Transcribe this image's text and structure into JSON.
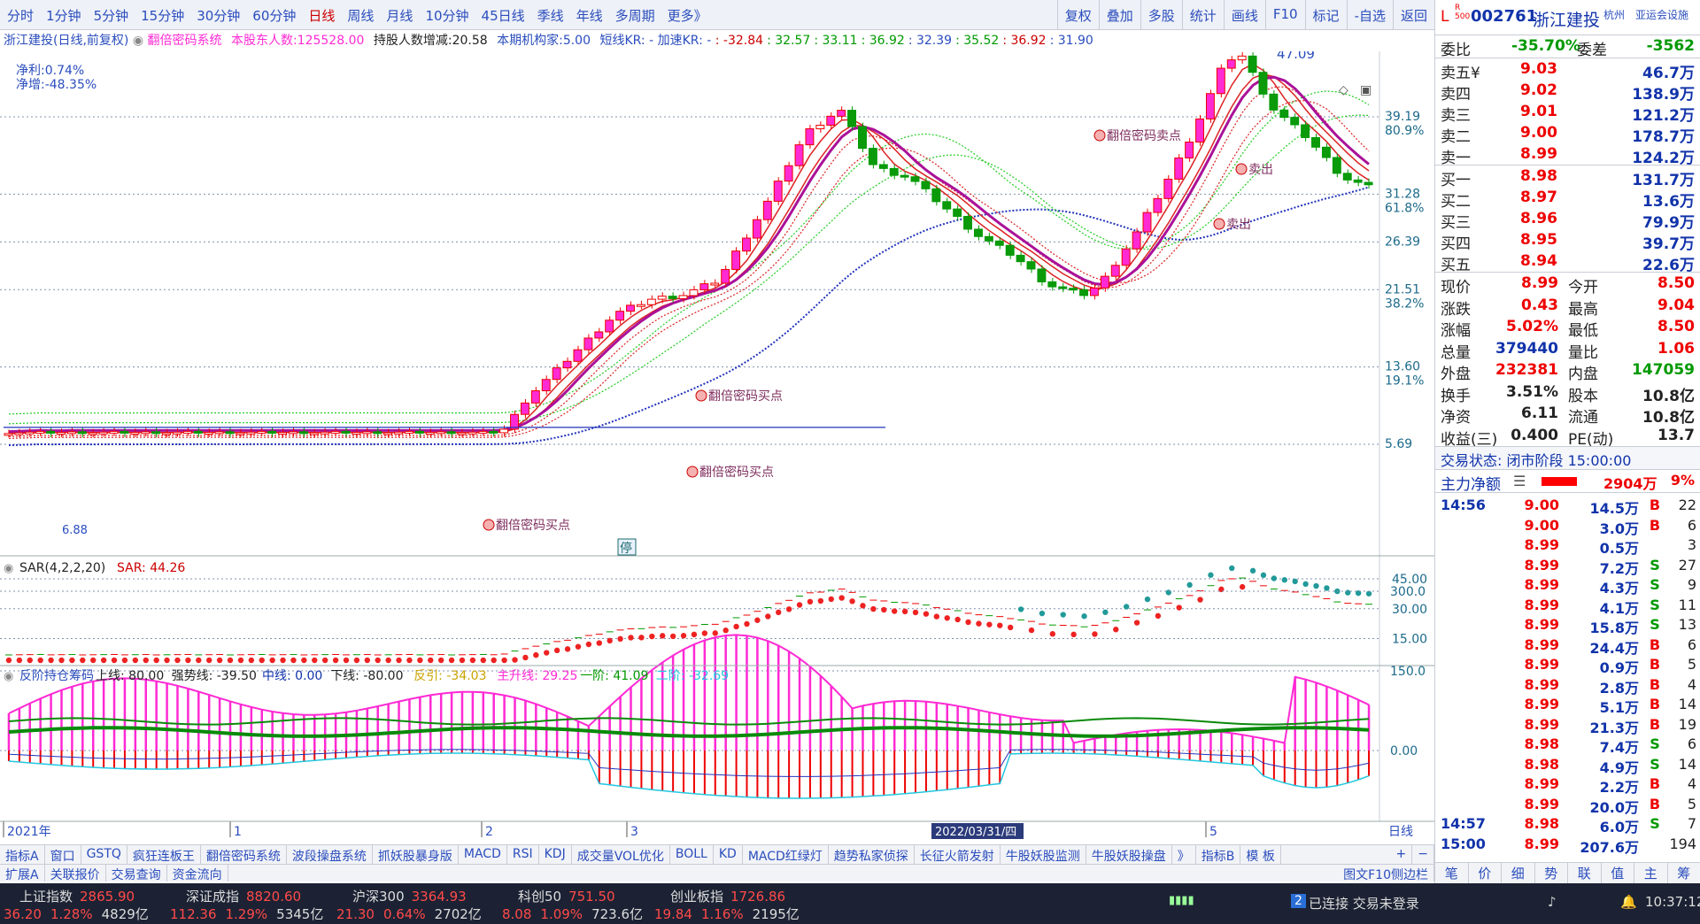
{
  "toolbar": {
    "periods": [
      "分时",
      "1分钟",
      "5分钟",
      "15分钟",
      "30分钟",
      "60分钟",
      "日线",
      "周线",
      "月线",
      "10分钟",
      "45日线",
      "季线",
      "年线",
      "多周期",
      "更多》"
    ],
    "active": "日线",
    "tools": [
      "复权",
      "叠加",
      "多股",
      "统计",
      "画线",
      "F10",
      "标记",
      "-自选",
      "返回"
    ]
  },
  "info": {
    "name": "浙江建投(日线,前复权)",
    "system": "翻倍密码系统",
    "holders_label": "本股东人数:",
    "holders": "125528.00",
    "change_label": "持股人数增减:",
    "change": "20.58",
    "inst_label": "本期机构家:",
    "inst": "5.00",
    "kr_label": "短线KR: -  加速KR: -",
    "kr_values": [
      ": -32.84",
      ": 32.57",
      ": 33.11",
      ": 36.92",
      ": 32.39",
      ": 35.52",
      ": 36.92",
      ": 31.90"
    ]
  },
  "main_chart": {
    "profit_label": "净利:0.74%",
    "growth_label": "净增:-48.35%",
    "y_labels": [
      {
        "v": "39.19",
        "p": "80.9%"
      },
      {
        "v": "31.28",
        "p": "61.8%"
      },
      {
        "v": "26.39",
        "p": ""
      },
      {
        "v": "21.51",
        "p": "38.2%"
      },
      {
        "v": "13.60",
        "p": "19.1%"
      },
      {
        "v": "5.69",
        "p": ""
      }
    ],
    "high_label": "47.09",
    "low_label": "6.88",
    "annotations": [
      "翻倍密码买点",
      "翻倍密码买点",
      "翻倍密码买点",
      "卖出",
      "卖出",
      "翻倍密码卖点"
    ],
    "stop_label": "停"
  },
  "sar": {
    "title": "SAR(4,2,2,20)",
    "value": "SAR: 44.26",
    "y_labels": [
      "45.00",
      "30.00",
      "15.00"
    ]
  },
  "fan": {
    "title": "反阶持仓筹码",
    "items": [
      {
        "t": "上线: 80.00",
        "c": "#222"
      },
      {
        "t": "强势线: -39.50",
        "c": "#222"
      },
      {
        "t": "中线: 0.00",
        "c": "#1133aa"
      },
      {
        "t": "下线: -80.00",
        "c": "#222"
      },
      {
        "t": "反引: -34.03",
        "c": "#c9a300"
      },
      {
        "t": "主升线: 29.25",
        "c": "#ff2ad4"
      },
      {
        "t": "一阶: 41.09",
        "c": "#090"
      },
      {
        "t": "二阶: -32.69",
        "c": "#22c7e0"
      }
    ],
    "y_labels": [
      "300.0",
      "150.0",
      "0.00"
    ]
  },
  "x_axis": {
    "labels": [
      "2021年",
      "1",
      "2",
      "3",
      "5"
    ],
    "cursor_date": "2022/03/31/四",
    "right_label": "日线"
  },
  "bottom_tabs": [
    "指标A",
    "窗口",
    "GSTQ",
    "疯狂连板王",
    "翻倍密码系统",
    "波段操盘系统",
    "抓妖股暴身版",
    "MACD",
    "RSI",
    "KDJ",
    "成交量VOL优化",
    "BOLL",
    "KD",
    "MACD红绿灯",
    "趋势私家侦探",
    "长征火箭发射",
    "牛股妖股监测",
    "牛股妖股操盘",
    "》",
    "指标B",
    "模 板"
  ],
  "bottom_tabs2": [
    "扩展A",
    "关联报价",
    "交易查询",
    "资金流向"
  ],
  "bottom_tabs2_right": "图文F10侧边栏",
  "status": {
    "indices": [
      {
        "name": "上证指数",
        "value": "2865.90",
        "chg": "36.20",
        "pct": "1.28%",
        "amt": "4829亿"
      },
      {
        "name": "深证成指",
        "value": "8820.60",
        "chg": "112.36",
        "pct": "1.29%",
        "amt": "5345亿"
      },
      {
        "name": "沪深300",
        "value": "3364.93",
        "chg": "21.30",
        "pct": "0.64%",
        "amt": "2702亿"
      },
      {
        "name": "科创50",
        "value": "751.50",
        "chg": "8.08",
        "pct": "1.09%",
        "amt": "723.6亿"
      },
      {
        "name": "创业板指",
        "value": "1726.86",
        "chg": "19.84",
        "pct": "1.16%",
        "amt": "2195亿"
      }
    ],
    "connection": "已连接 交易未登录",
    "conn_num": "2",
    "time": "10:37:12"
  },
  "quote": {
    "prefix": "L",
    "code": "002761",
    "name": "浙江建投",
    "region": "杭州",
    "tag": "亚运会设施",
    "weibi_label": "委比",
    "weibi": "-35.70%",
    "weicha_label": "委差",
    "weicha": "-3562",
    "asks": [
      {
        "l": "卖五¥",
        "p": "9.03",
        "v": "46.7万"
      },
      {
        "l": "卖四",
        "p": "9.02",
        "v": "138.9万"
      },
      {
        "l": "卖三",
        "p": "9.01",
        "v": "121.2万"
      },
      {
        "l": "卖二",
        "p": "9.00",
        "v": "178.7万"
      },
      {
        "l": "卖一",
        "p": "8.99",
        "v": "124.2万"
      }
    ],
    "bids": [
      {
        "l": "买一",
        "p": "8.98",
        "v": "131.7万"
      },
      {
        "l": "买二",
        "p": "8.97",
        "v": "13.6万"
      },
      {
        "l": "买三",
        "p": "8.96",
        "v": "79.9万"
      },
      {
        "l": "买四",
        "p": "8.95",
        "v": "39.7万"
      },
      {
        "l": "买五",
        "p": "8.94",
        "v": "22.6万"
      }
    ],
    "stats": [
      {
        "l1": "现价",
        "v1": "8.99",
        "c1": "red",
        "l2": "今开",
        "v2": "8.50",
        "c2": "red"
      },
      {
        "l1": "涨跌",
        "v1": "0.43",
        "c1": "red",
        "l2": "最高",
        "v2": "9.04",
        "c2": "red"
      },
      {
        "l1": "涨幅",
        "v1": "5.02%",
        "c1": "red",
        "l2": "最低",
        "v2": "8.50",
        "c2": "red"
      },
      {
        "l1": "总量",
        "v1": "379440",
        "c1": "blue",
        "l2": "量比",
        "v2": "1.06",
        "c2": "red"
      },
      {
        "l1": "外盘",
        "v1": "232381",
        "c1": "red",
        "l2": "内盘",
        "v2": "147059",
        "c2": "green"
      },
      {
        "l1": "换手",
        "v1": "3.51%",
        "c1": "dark",
        "l2": "股本",
        "v2": "10.8亿",
        "c2": "dark"
      },
      {
        "l1": "净资",
        "v1": "6.11",
        "c1": "dark",
        "l2": "流通",
        "v2": "10.8亿",
        "c2": "dark"
      },
      {
        "l1": "收益(三)",
        "v1": "0.400",
        "c1": "dark",
        "l2": "PE(动)",
        "v2": "13.7",
        "c2": "dark"
      }
    ],
    "trade_state": "交易状态: 闭市阶段 15:00:00",
    "main_net_label": "主力净额",
    "main_net": "2904万",
    "main_net_pct": "9%",
    "ticks": [
      {
        "t": "14:56",
        "p": "9.00",
        "v": "14.5万",
        "s": "B",
        "n": "22"
      },
      {
        "t": "",
        "p": "9.00",
        "v": "3.0万",
        "s": "B",
        "n": "6"
      },
      {
        "t": "",
        "p": "8.99",
        "v": "0.5万",
        "s": "",
        "n": "3"
      },
      {
        "t": "",
        "p": "8.99",
        "v": "7.2万",
        "s": "S",
        "n": "27"
      },
      {
        "t": "",
        "p": "8.99",
        "v": "4.3万",
        "s": "S",
        "n": "9"
      },
      {
        "t": "",
        "p": "8.99",
        "v": "4.1万",
        "s": "S",
        "n": "11"
      },
      {
        "t": "",
        "p": "8.99",
        "v": "15.8万",
        "s": "S",
        "n": "13"
      },
      {
        "t": "",
        "p": "8.99",
        "v": "24.4万",
        "s": "B",
        "n": "6"
      },
      {
        "t": "",
        "p": "8.99",
        "v": "0.9万",
        "s": "B",
        "n": "5"
      },
      {
        "t": "",
        "p": "8.99",
        "v": "2.8万",
        "s": "B",
        "n": "4"
      },
      {
        "t": "",
        "p": "8.99",
        "v": "5.1万",
        "s": "B",
        "n": "14"
      },
      {
        "t": "",
        "p": "8.99",
        "v": "21.3万",
        "s": "B",
        "n": "19"
      },
      {
        "t": "",
        "p": "8.98",
        "v": "7.4万",
        "s": "S",
        "n": "6"
      },
      {
        "t": "",
        "p": "8.98",
        "v": "4.9万",
        "s": "S",
        "n": "14"
      },
      {
        "t": "",
        "p": "8.99",
        "v": "2.2万",
        "s": "B",
        "n": "4"
      },
      {
        "t": "",
        "p": "8.99",
        "v": "20.0万",
        "s": "B",
        "n": "5"
      },
      {
        "t": "14:57",
        "p": "8.98",
        "v": "6.0万",
        "s": "S",
        "n": "7"
      },
      {
        "t": "15:00",
        "p": "8.99",
        "v": "207.6万",
        "s": "",
        "n": "194"
      }
    ],
    "bottom_tabs": [
      "笔",
      "价",
      "细",
      "势",
      "联",
      "值",
      "主",
      "筹"
    ]
  }
}
